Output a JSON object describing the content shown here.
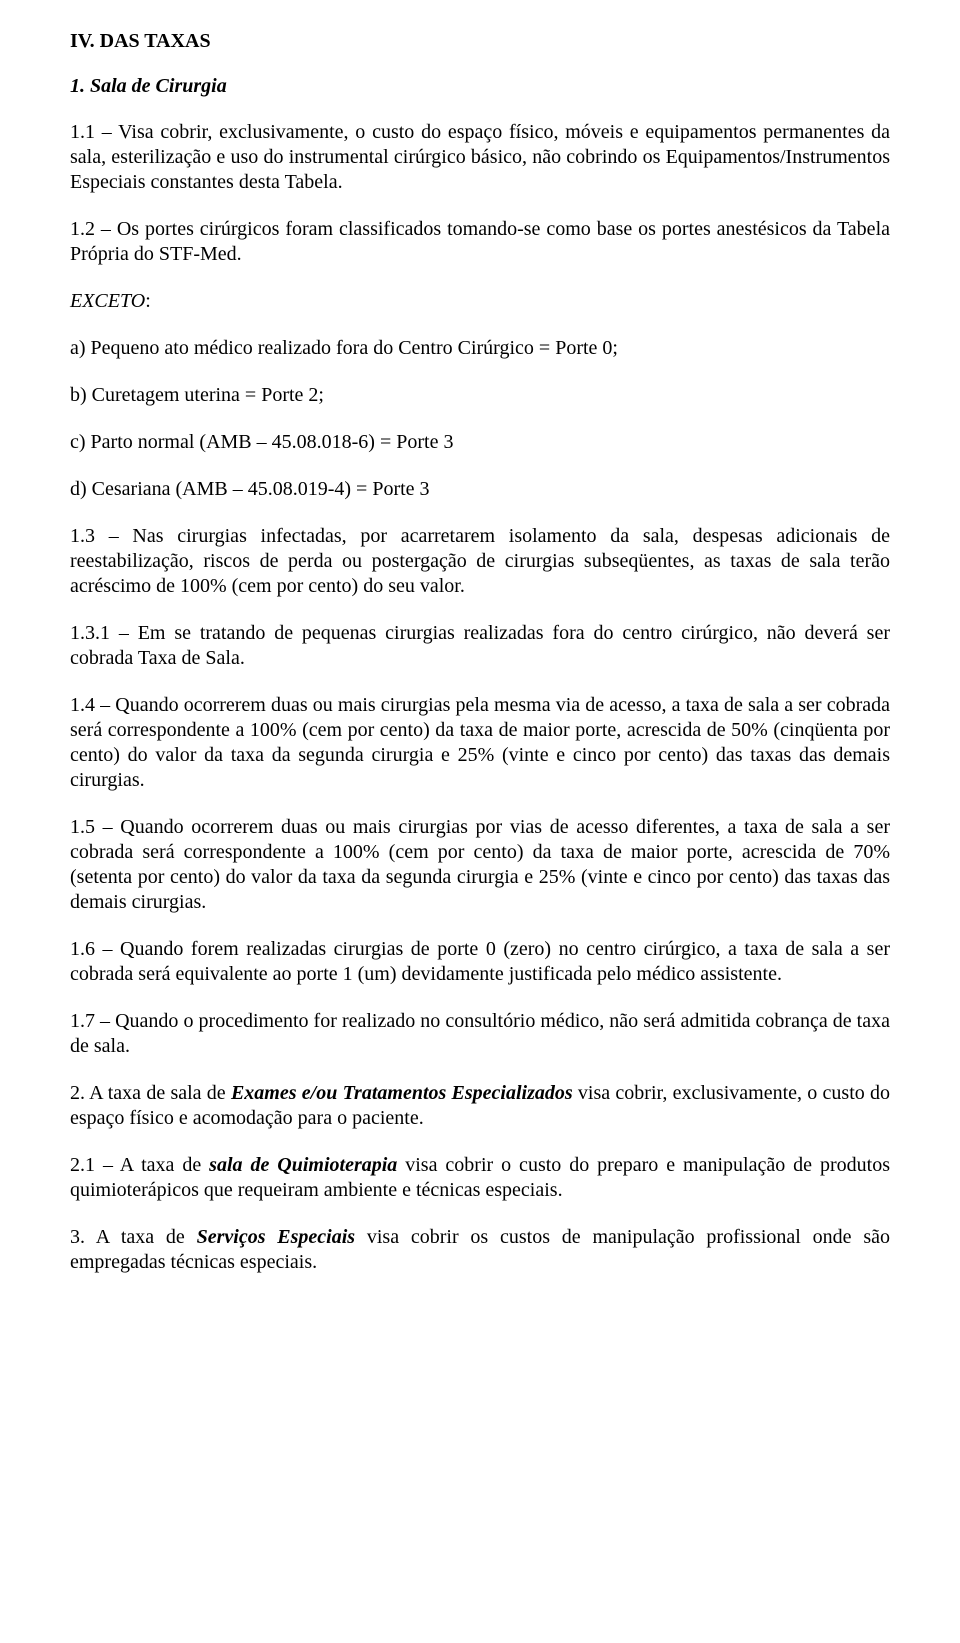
{
  "colors": {
    "text": "#000000",
    "background": "#ffffff"
  },
  "typography": {
    "family": "Times New Roman",
    "body_size_pt": 15,
    "line_height": 1.25
  },
  "section_heading": "IV. DAS TAXAS",
  "subheading": "1. Sala de Cirurgia",
  "p1_1": "1.1 – Visa cobrir, exclusivamente, o custo do espaço físico, móveis e equipamentos permanentes da sala, esterilização e uso do instrumental cirúrgico básico, não cobrindo os Equipamentos/Instrumentos Especiais constantes desta Tabela.",
  "p1_2": "1.2 – Os portes cirúrgicos foram classificados tomando-se como base os portes anestésicos da Tabela Própria do STF-Med.",
  "exceto_label": "EXCETO",
  "exceto_colon": ":",
  "a": "a) Pequeno ato médico realizado fora do Centro Cirúrgico = Porte 0;",
  "b": "b) Curetagem uterina = Porte 2;",
  "c": "c) Parto normal (AMB – 45.08.018-6) = Porte 3",
  "d": "d) Cesariana (AMB – 45.08.019-4) = Porte 3",
  "p1_3": "1.3 – Nas cirurgias infectadas, por acarretarem isolamento da sala, despesas adicionais de reestabilização, riscos de perda ou postergação de cirurgias subseqüentes, as taxas de sala terão acréscimo de 100% (cem por cento) do seu valor.",
  "p1_3_1": "1.3.1 – Em se tratando de pequenas cirurgias realizadas fora do centro cirúrgico, não deverá ser cobrada Taxa de Sala.",
  "p1_4": "1.4 – Quando ocorrerem duas ou mais cirurgias pela mesma via de acesso, a taxa de sala a ser cobrada será correspondente a 100% (cem por cento) da taxa de maior porte, acrescida de 50% (cinqüenta por cento) do valor da taxa da segunda cirurgia e 25% (vinte e cinco por cento) das taxas das demais cirurgias.",
  "p1_5": "1.5 – Quando ocorrerem duas ou mais cirurgias por vias de acesso diferentes, a taxa de sala a ser cobrada será correspondente a 100% (cem por cento) da taxa de maior porte, acrescida de 70% (setenta por cento) do valor da taxa da segunda cirurgia e 25% (vinte e cinco por cento) das taxas das demais cirurgias.",
  "p1_6": "1.6 – Quando forem realizadas cirurgias de porte 0 (zero) no centro cirúrgico, a taxa de sala a ser cobrada será equivalente ao porte 1 (um) devidamente justificada pelo médico assistente.",
  "p1_7": "1.7 – Quando o procedimento for realizado no consultório médico, não será admitida cobrança de taxa de sala.",
  "p2_pre": "2. A taxa de sala de ",
  "p2_emph": "Exames e/ou Tratamentos Especializados",
  "p2_post": " visa cobrir, exclusivamente, o custo do espaço físico e acomodação para o paciente.",
  "p2_1_pre": "2.1 – A taxa de ",
  "p2_1_emph": "sala de Quimioterapia",
  "p2_1_post": " visa cobrir o custo do preparo e manipulação de produtos quimioterápicos que requeiram ambiente e técnicas especiais.",
  "p3_pre": "3. A taxa de ",
  "p3_emph": "Serviços Especiais",
  "p3_post": " visa cobrir os custos de manipulação profissional onde são empregadas técnicas especiais."
}
